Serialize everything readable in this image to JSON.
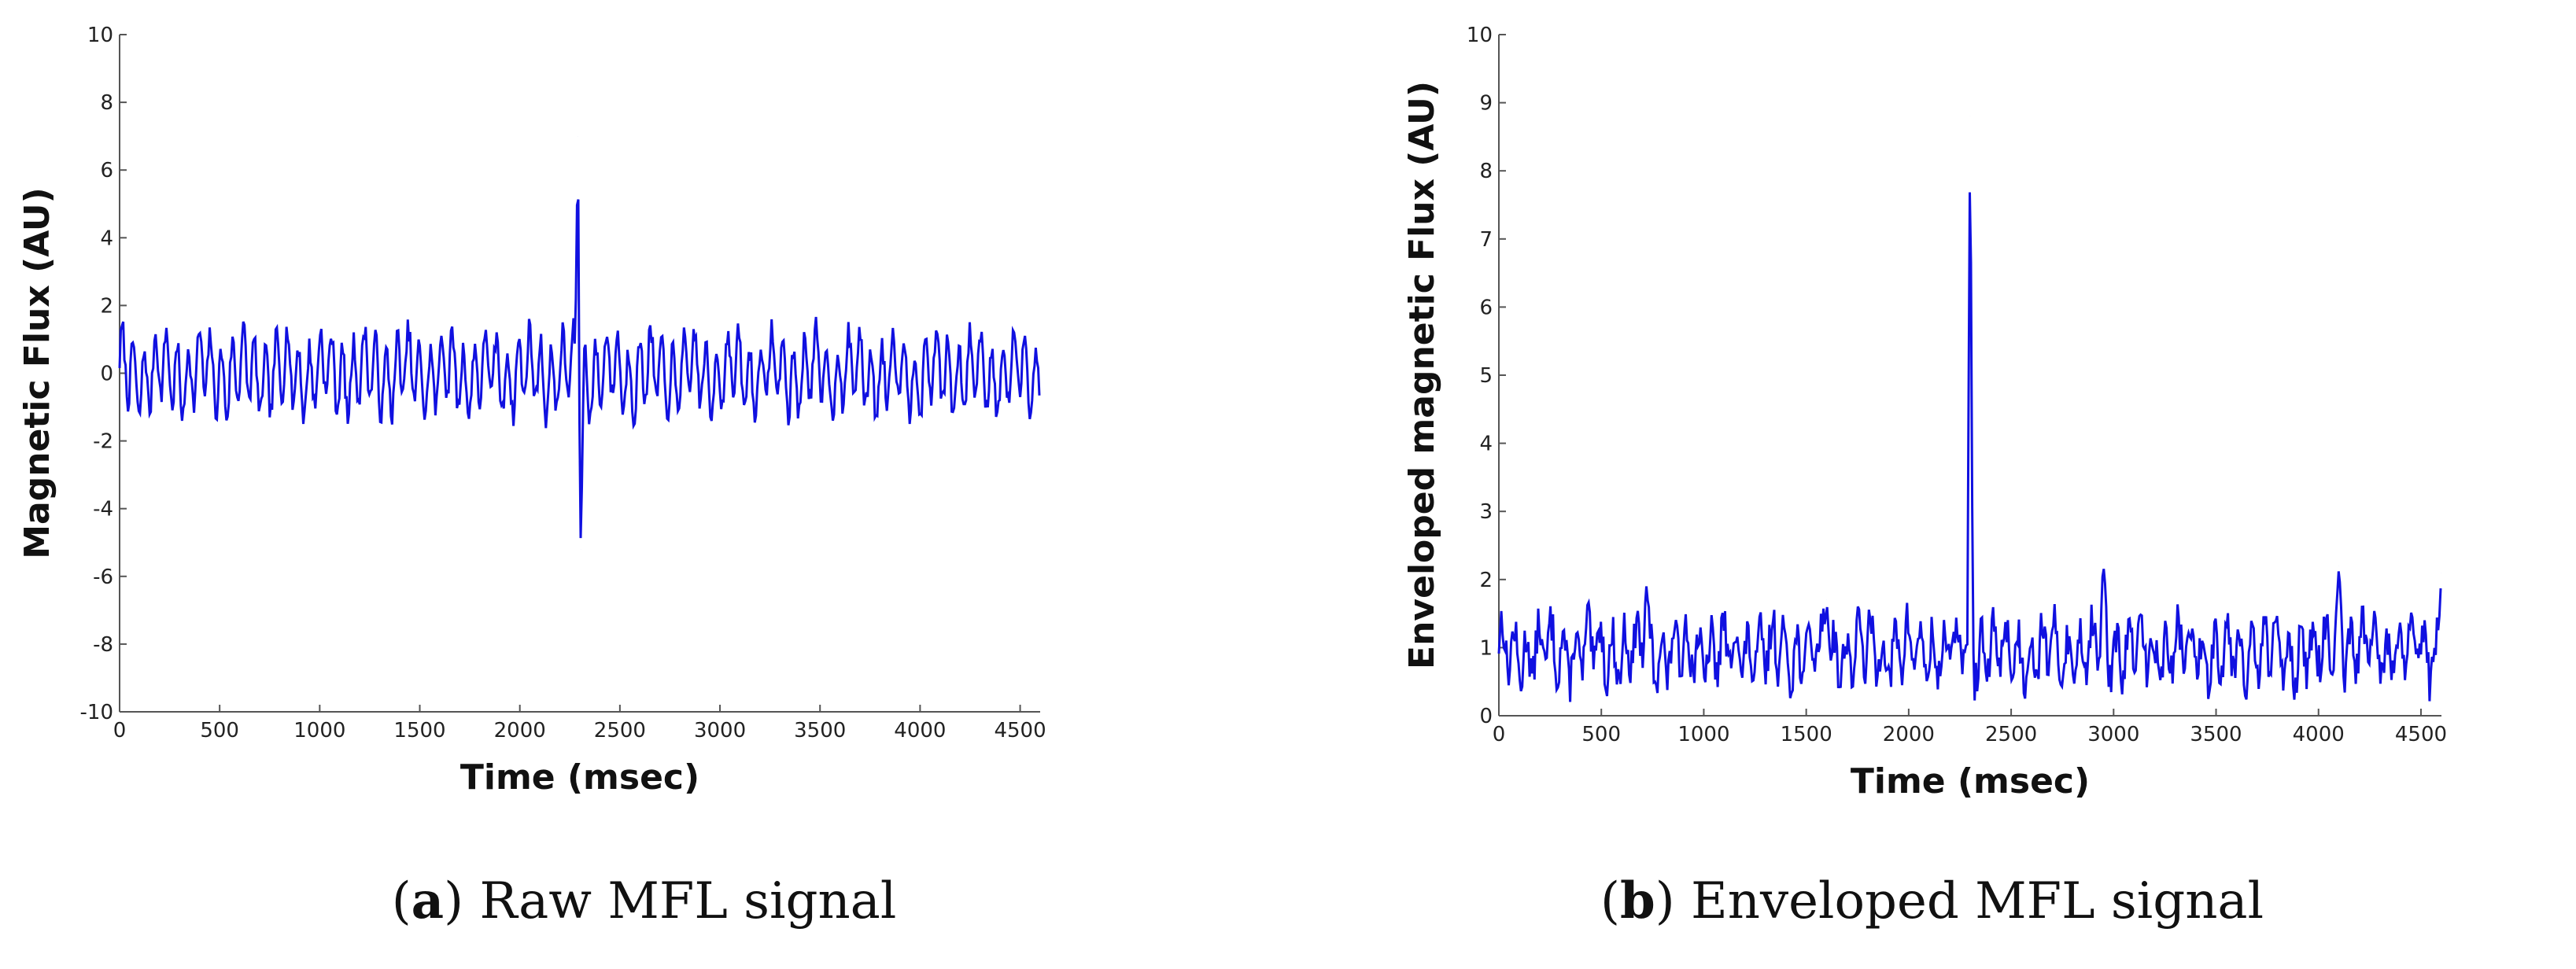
{
  "chart_data": [
    {
      "type": "line",
      "xlabel": "Time (msec)",
      "ylabel": "Magnetic Flux (AU)",
      "xlim": [
        0,
        4600
      ],
      "ylim": [
        -10,
        10
      ],
      "xticks": [
        "0",
        "500",
        "1000",
        "1500",
        "2000",
        "2500",
        "3000",
        "3500",
        "4000",
        "4500"
      ],
      "yticks": [
        "10",
        "8",
        "6",
        "4",
        "2",
        "0",
        "-2",
        "-4",
        "-6",
        "-8",
        "-10"
      ],
      "grid": false,
      "line_color": "#1010e0",
      "signal": {
        "baseline": 0,
        "amplitude": 1.0,
        "period_ms": 55,
        "noise": 0.35,
        "seed": 7
      },
      "events": [
        {
          "x": 2290,
          "value": 7.0,
          "label": "peak"
        },
        {
          "x": 2305,
          "value": -5.2,
          "label": "trough"
        }
      ],
      "caption_letter": "a",
      "caption_text": "Raw MFL signal"
    },
    {
      "type": "line",
      "xlabel": "Time (msec)",
      "ylabel": "Enveloped magnetic Flux (AU)",
      "xlim": [
        0,
        4600
      ],
      "ylim": [
        0,
        10
      ],
      "xticks": [
        "0",
        "500",
        "1000",
        "1500",
        "2000",
        "2500",
        "3000",
        "3500",
        "4000",
        "4500"
      ],
      "yticks": [
        "10",
        "9",
        "8",
        "7",
        "6",
        "5",
        "4",
        "3",
        "2",
        "1",
        "0"
      ],
      "grid": false,
      "line_color": "#1010e0",
      "signal": {
        "baseline": 0.95,
        "amplitude": 0.35,
        "period_ms": 60,
        "noise": 0.3,
        "seed": 13
      },
      "events": [
        {
          "x": 2300,
          "value": 8.8,
          "label": "peak"
        },
        {
          "x": 720,
          "value": 1.9,
          "label": "minor-peak"
        },
        {
          "x": 1600,
          "value": 1.7,
          "label": "minor-peak"
        },
        {
          "x": 2950,
          "value": 2.25,
          "label": "minor-peak"
        },
        {
          "x": 4100,
          "value": 2.2,
          "label": "minor-peak"
        },
        {
          "x": 4600,
          "value": 2.1,
          "label": "end-rise"
        }
      ],
      "caption_letter": "b",
      "caption_text": "Enveloped MFL signal"
    }
  ]
}
